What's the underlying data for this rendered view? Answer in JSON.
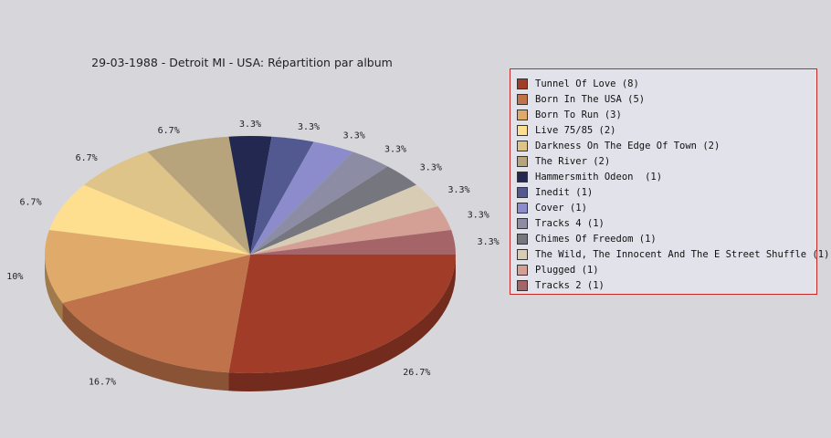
{
  "chart_data": {
    "type": "pie",
    "title": "29-03-1988 - Detroit MI - USA:  Répartition par album",
    "slices": [
      {
        "label": "Tunnel Of Love (8)",
        "value": 8,
        "percent_label": "26.7%",
        "color": "#a03c28"
      },
      {
        "label": "Born In The USA (5)",
        "value": 5,
        "percent_label": "16.7%",
        "color": "#c0734a"
      },
      {
        "label": "Born To Run (3)",
        "value": 3,
        "percent_label": "10%",
        "color": "#e0aa6a"
      },
      {
        "label": "Live 75/85 (2)",
        "value": 2,
        "percent_label": "6.7%",
        "color": "#fedf90"
      },
      {
        "label": "Darkness On The Edge Of Town (2)",
        "value": 2,
        "percent_label": "6.7%",
        "color": "#dec488"
      },
      {
        "label": "The River (2)",
        "value": 2,
        "percent_label": "6.7%",
        "color": "#b8a47c"
      },
      {
        "label": "Hammersmith Odeon  (1)",
        "value": 1,
        "percent_label": "3.3%",
        "color": "#222850"
      },
      {
        "label": "Inedit (1)",
        "value": 1,
        "percent_label": "3.3%",
        "color": "#525890"
      },
      {
        "label": "Cover (1)",
        "value": 1,
        "percent_label": "3.3%",
        "color": "#8c8ccc"
      },
      {
        "label": "Tracks 4 (1)",
        "value": 1,
        "percent_label": "3.3%",
        "color": "#8c8ca4"
      },
      {
        "label": "Chimes Of Freedom (1)",
        "value": 1,
        "percent_label": "3.3%",
        "color": "#76767e"
      },
      {
        "label": "The Wild, The Innocent And The E Street Shuffle (1)",
        "value": 1,
        "percent_label": "3.3%",
        "color": "#d8ccb4"
      },
      {
        "label": "Plugged (1)",
        "value": 1,
        "percent_label": "3.3%",
        "color": "#d4a096"
      },
      {
        "label": "Tracks 2 (1)",
        "value": 1,
        "percent_label": "3.3%",
        "color": "#a46468"
      }
    ],
    "style": "3d",
    "legend_position": "right"
  }
}
